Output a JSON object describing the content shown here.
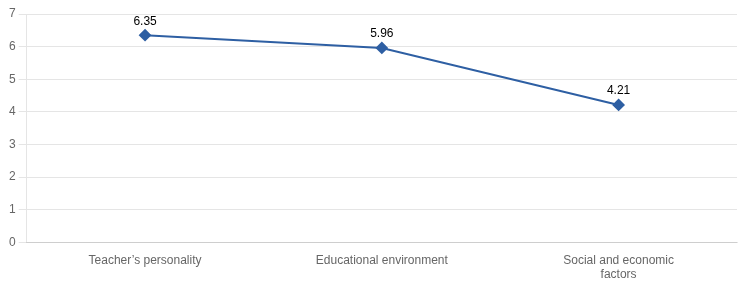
{
  "chart_data": {
    "type": "line",
    "categories": [
      "Teacher’s personality",
      "Educational environment",
      "Social and economic\nfactors"
    ],
    "values": [
      6.35,
      5.96,
      4.21
    ],
    "color": "#2E5FA3",
    "marker": "diamond",
    "ylim": [
      0,
      7
    ],
    "yticks": [
      0,
      1,
      2,
      3,
      4,
      5,
      6,
      7
    ],
    "grid": true,
    "data_labels": true
  }
}
